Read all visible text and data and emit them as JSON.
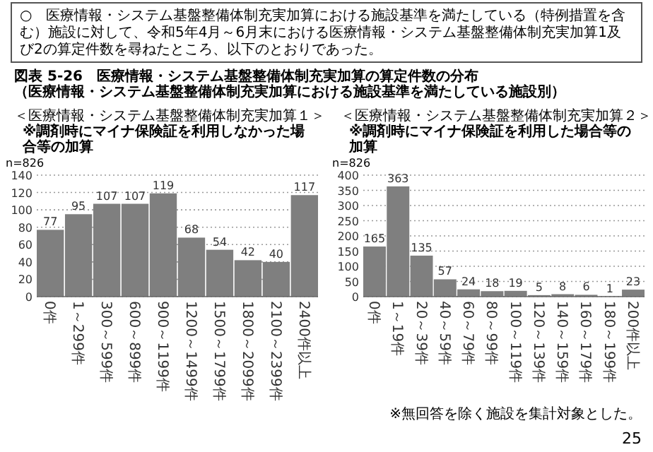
{
  "chart_data": [
    {
      "type": "bar",
      "title": "＜医療情報・システム基盤整備体制充実加算１＞",
      "subtitle": "※調剤時にマイナ保険証を利用しなかった場合等の加算",
      "ylabel": "n=826",
      "annotations": [
        "○　医療情報・システム基盤整備体制充実加算における施設基準を満たしている（特例措置を含む）施設に対して、令和5年4月～6月末における医療情報・システム基盤整備体制充実加算1及び2の算定件数を尋ねたところ、以下のとおりであった。",
        "図表 5-26　医療情報・システム基盤整備体制充実加算の算定件数の分布",
        "（医療情報・システム基盤整備体制充実加算における施設基準を満たしている施設別）"
      ],
      "categories": [
        "0件",
        "1～299件",
        "300～599件",
        "600～899件",
        "900～1199件",
        "1200～1499件",
        "1500～1799件",
        "1800～2099件",
        "2100～2399件",
        "2400件以上"
      ],
      "values": [
        77,
        95,
        107,
        107,
        119,
        68,
        54,
        42,
        40,
        117
      ],
      "color": "#7f7f7f",
      "ylim": [
        0,
        140
      ],
      "yticks": [
        0,
        20,
        40,
        60,
        80,
        100,
        120,
        140
      ],
      "grid": "y",
      "data_labels": true
    },
    {
      "type": "bar",
      "title": "＜医療情報・システム基盤整備体制充実加算２＞",
      "subtitle": "※調剤時にマイナ保険証を利用した場合等の加算",
      "ylabel": "n=826",
      "annotations": [
        "※無回答を除く施設を集計対象とした。",
        "25"
      ],
      "categories": [
        "0件",
        "1～19件",
        "20～39件",
        "40～59件",
        "60～79件",
        "80～99件",
        "100～119件",
        "120～139件",
        "140～159件",
        "160～179件",
        "180～199件",
        "200件以上"
      ],
      "values": [
        165,
        363,
        135,
        57,
        24,
        18,
        19,
        5,
        8,
        6,
        1,
        23
      ],
      "color": "#7f7f7f",
      "ylim": [
        0,
        400
      ],
      "yticks": [
        0,
        50,
        100,
        150,
        200,
        250,
        300,
        350,
        400
      ],
      "grid": "y",
      "data_labels": true
    }
  ]
}
